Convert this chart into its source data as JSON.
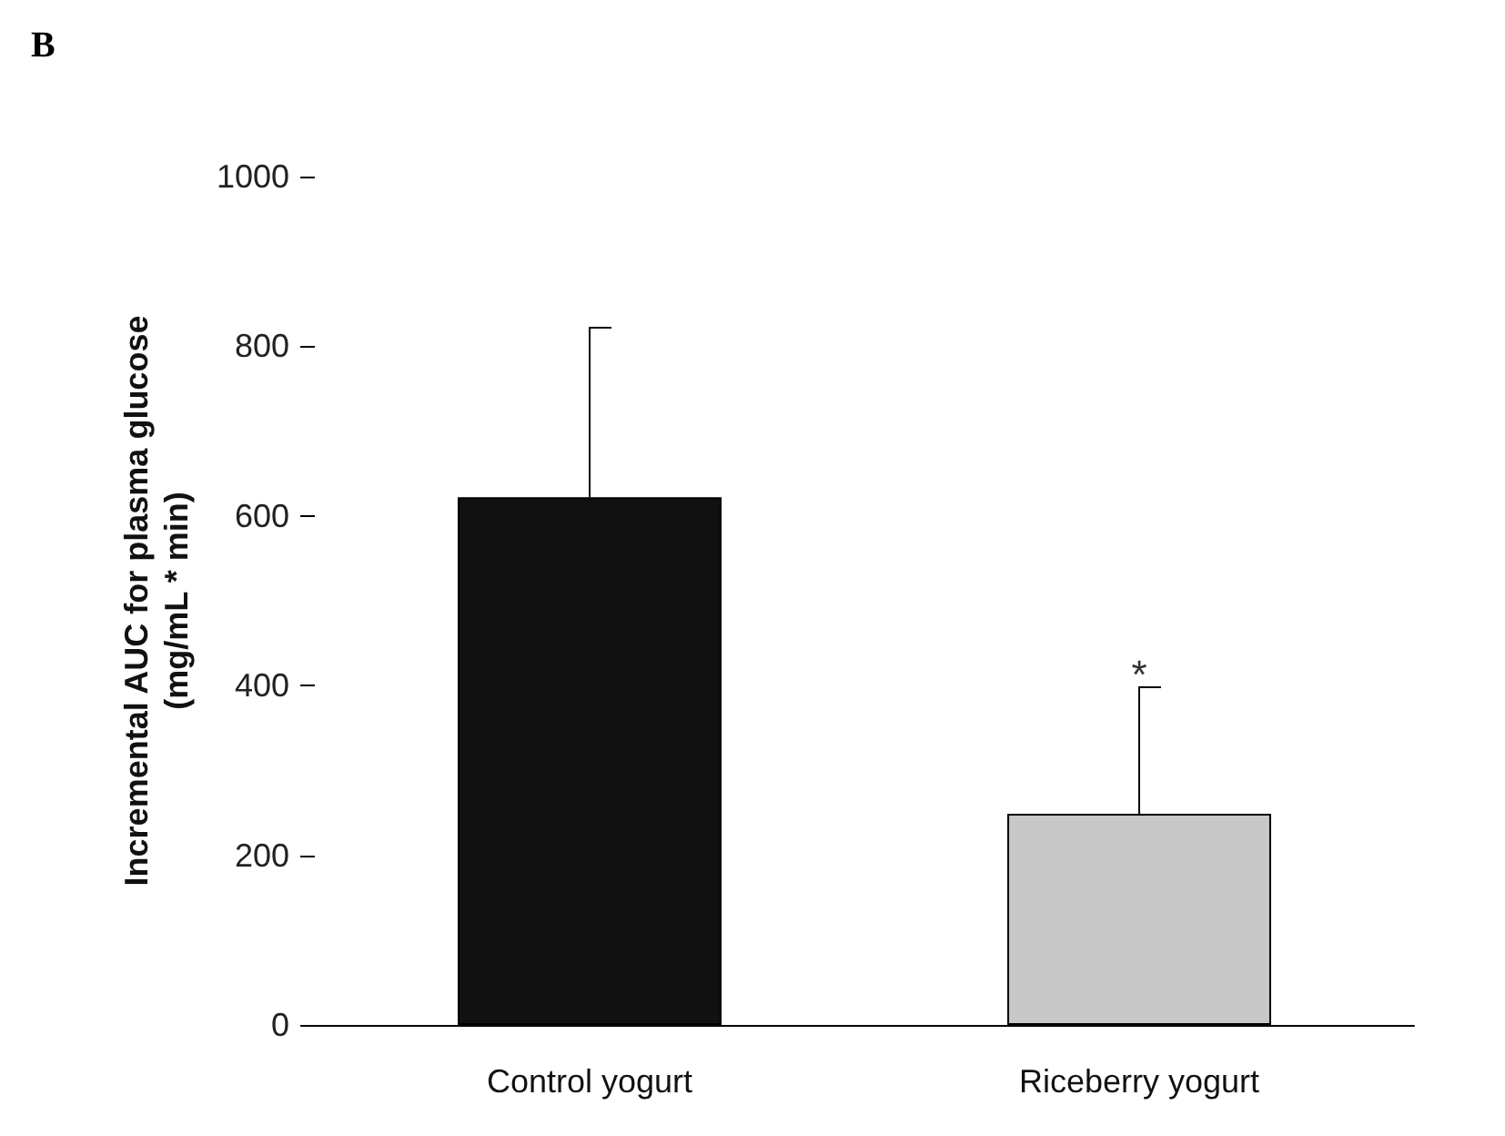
{
  "chart_data": {
    "type": "bar",
    "title": "B",
    "ylabel": "Incremental AUC for plasma glucose\n(mg/mL * min)",
    "categories": [
      "Control yogurt",
      "Riceberry yogurt"
    ],
    "values": [
      622,
      249
    ],
    "colors": [
      "#111111",
      "#c8c8c8"
    ],
    "errors": [
      [
        622,
        822
      ],
      [
        249,
        398
      ]
    ],
    "ylim": [
      0,
      1000
    ],
    "yticks": [
      0,
      200,
      400,
      600,
      800,
      1000
    ],
    "grid": false,
    "annotations": [
      {
        "text": "*",
        "x": "Riceberry yogurt",
        "y": 398
      }
    ]
  }
}
